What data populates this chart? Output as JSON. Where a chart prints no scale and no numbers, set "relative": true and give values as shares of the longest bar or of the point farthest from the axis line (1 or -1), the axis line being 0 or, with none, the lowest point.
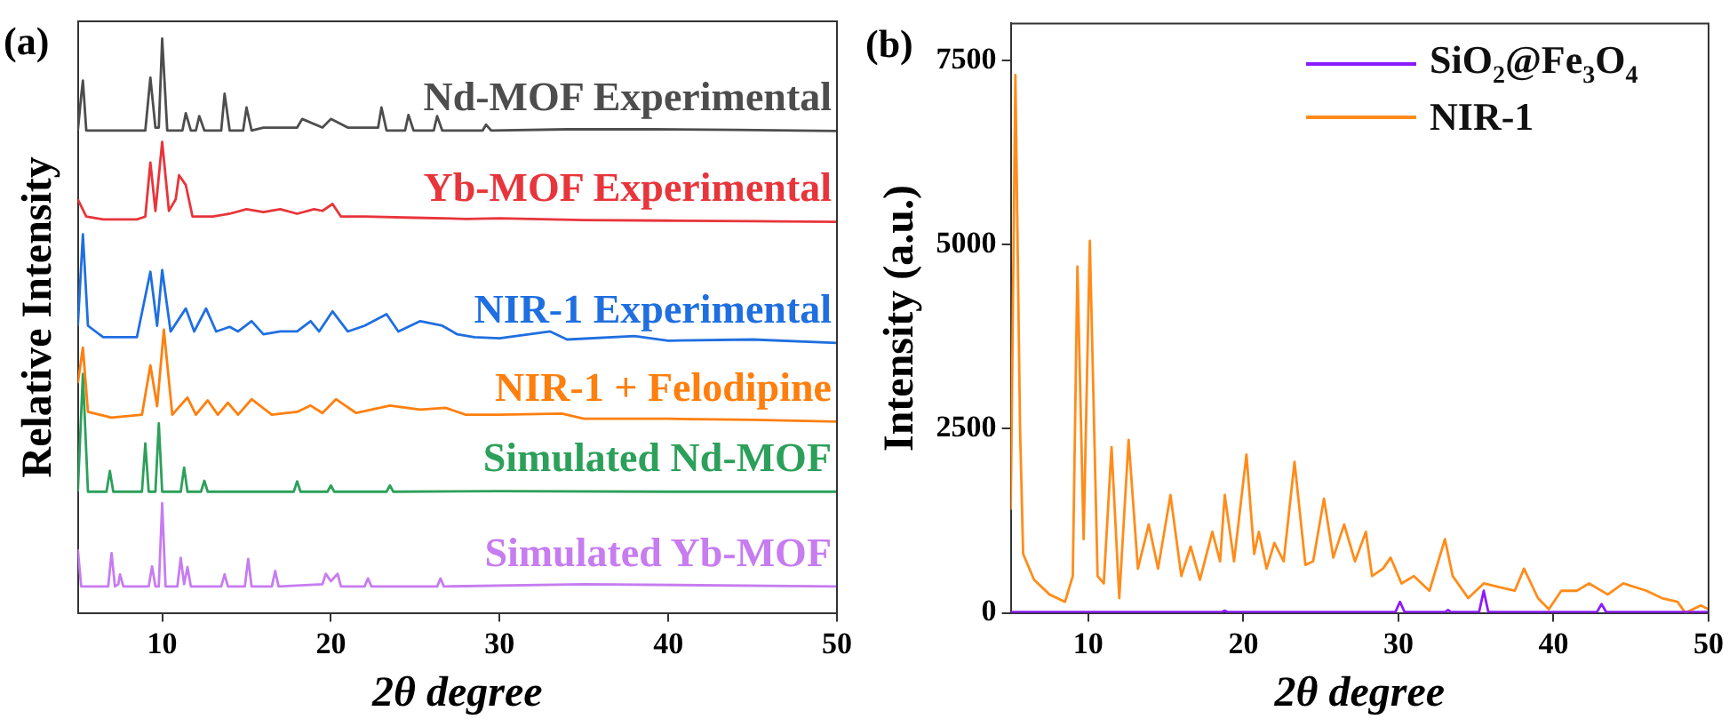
{
  "chart_data": [
    {
      "type": "line",
      "title": "(a)",
      "xlabel": "2θ degree",
      "ylabel": "Relative Intensity",
      "relative": true,
      "xlim": [
        5,
        50
      ],
      "xticks": [
        10,
        20,
        30,
        40,
        50
      ],
      "legend": false,
      "marker": "none",
      "line_style": "solid",
      "series": [
        {
          "name": "Nd-MOF Experimental",
          "color": "#4d4d4d",
          "x": [
            5.0,
            5.2,
            5.3,
            5.5,
            9.0,
            9.3,
            9.6,
            9.8,
            10.0,
            10.3,
            11.2,
            11.4,
            11.7,
            12.0,
            12.2,
            12.5,
            13.5,
            13.7,
            14.0,
            14.8,
            15.0,
            15.3,
            16.0,
            18.0,
            18.3,
            19.5,
            20.0,
            21.0,
            22.8,
            23.0,
            23.3,
            24.4,
            24.6,
            24.9,
            26.1,
            26.3,
            26.6,
            29.0,
            29.2,
            29.5,
            34.0,
            39.0,
            44.0,
            50.0
          ],
          "values": [
            0.84,
            0.9,
            0.927,
            0.84,
            0.84,
            0.932,
            0.845,
            0.845,
            1.0,
            0.84,
            0.84,
            0.87,
            0.84,
            0.84,
            0.865,
            0.84,
            0.84,
            0.904,
            0.84,
            0.84,
            0.88,
            0.84,
            0.845,
            0.845,
            0.86,
            0.845,
            0.86,
            0.845,
            0.845,
            0.88,
            0.84,
            0.84,
            0.867,
            0.84,
            0.84,
            0.865,
            0.84,
            0.84,
            0.85,
            0.84,
            0.842,
            0.842,
            0.841,
            0.839
          ]
        },
        {
          "name": "Yb-MOF Experimental",
          "color": "#e8353b",
          "x": [
            5.0,
            5.5,
            6.5,
            8.5,
            9.0,
            9.3,
            9.6,
            10.0,
            10.4,
            10.8,
            11.0,
            11.4,
            11.8,
            13.0,
            14.0,
            15.0,
            16.0,
            17.0,
            18.0,
            19.0,
            19.5,
            20.1,
            20.6,
            22.0,
            25.0,
            28.0,
            30.0,
            35.0,
            40.0,
            45.0,
            50.0
          ],
          "values": [
            0.72,
            0.69,
            0.685,
            0.685,
            0.69,
            0.784,
            0.7,
            0.82,
            0.7,
            0.72,
            0.762,
            0.745,
            0.69,
            0.69,
            0.695,
            0.703,
            0.698,
            0.703,
            0.695,
            0.703,
            0.7,
            0.712,
            0.69,
            0.69,
            0.688,
            0.686,
            0.687,
            0.684,
            0.683,
            0.682,
            0.681
          ]
        },
        {
          "name": "NIR-1 Experimental",
          "color": "#1f6fe0",
          "x": [
            5.0,
            5.3,
            5.6,
            6.5,
            8.5,
            9.3,
            9.7,
            10.0,
            10.5,
            11.4,
            11.9,
            12.6,
            13.2,
            14.0,
            14.5,
            15.3,
            16.0,
            17.0,
            18.0,
            18.8,
            19.3,
            20.1,
            21.0,
            22.0,
            23.3,
            24.0,
            25.3,
            26.6,
            27.5,
            28.5,
            30.0,
            33.0,
            34.0,
            38.0,
            40.0,
            45.0,
            50.0
          ],
          "values": [
            0.5,
            0.659,
            0.5,
            0.48,
            0.48,
            0.594,
            0.5,
            0.597,
            0.49,
            0.53,
            0.49,
            0.53,
            0.49,
            0.498,
            0.49,
            0.508,
            0.485,
            0.49,
            0.49,
            0.508,
            0.49,
            0.525,
            0.49,
            0.5,
            0.52,
            0.49,
            0.508,
            0.5,
            0.485,
            0.48,
            0.478,
            0.49,
            0.476,
            0.482,
            0.474,
            0.476,
            0.47
          ]
        },
        {
          "name": "NIR-1 + Felodipine",
          "color": "#ff7f0e",
          "x": [
            5.0,
            5.3,
            5.6,
            7.0,
            8.8,
            9.3,
            9.7,
            10.1,
            10.6,
            11.5,
            12.0,
            12.7,
            13.3,
            13.9,
            14.5,
            15.3,
            16.5,
            18.0,
            18.8,
            19.5,
            20.3,
            21.5,
            23.5,
            25.3,
            26.8,
            28.0,
            30.0,
            33.7,
            35.0,
            40.0,
            45.0,
            50.0
          ],
          "values": [
            0.4,
            0.462,
            0.35,
            0.34,
            0.345,
            0.431,
            0.36,
            0.493,
            0.345,
            0.375,
            0.345,
            0.37,
            0.345,
            0.366,
            0.345,
            0.372,
            0.345,
            0.35,
            0.361,
            0.348,
            0.372,
            0.348,
            0.361,
            0.354,
            0.357,
            0.345,
            0.345,
            0.347,
            0.338,
            0.338,
            0.336,
            0.333
          ]
        },
        {
          "name": "Simulated Nd-MOF",
          "color": "#2ca05a",
          "x": [
            5.0,
            5.3,
            5.6,
            6.7,
            6.9,
            7.1,
            8.8,
            9.0,
            9.2,
            9.6,
            9.8,
            10.0,
            11.1,
            11.3,
            11.5,
            12.3,
            12.5,
            12.7,
            17.8,
            18.0,
            18.2,
            19.8,
            20.0,
            20.2,
            23.3,
            23.5,
            23.7,
            30.0,
            40.0,
            50.0
          ],
          "values": [
            0.211,
            0.416,
            0.211,
            0.211,
            0.247,
            0.211,
            0.211,
            0.295,
            0.211,
            0.211,
            0.33,
            0.211,
            0.211,
            0.253,
            0.211,
            0.211,
            0.23,
            0.211,
            0.211,
            0.229,
            0.211,
            0.211,
            0.222,
            0.211,
            0.211,
            0.222,
            0.211,
            0.212,
            0.211,
            0.211
          ]
        },
        {
          "name": "Simulated Yb-MOF",
          "color": "#c77cf0",
          "x": [
            5.0,
            5.2,
            6.8,
            7.0,
            7.2,
            7.4,
            7.5,
            7.7,
            9.2,
            9.4,
            9.6,
            9.8,
            10.0,
            10.2,
            10.9,
            11.1,
            11.3,
            11.5,
            11.7,
            13.5,
            13.7,
            13.9,
            14.9,
            15.1,
            15.3,
            16.5,
            16.7,
            16.9,
            19.5,
            19.7,
            20.0,
            20.4,
            20.6,
            22.0,
            22.2,
            22.4,
            26.3,
            26.5,
            26.7,
            35.0,
            50.0
          ],
          "values": [
            0.111,
            0.046,
            0.046,
            0.104,
            0.046,
            0.05,
            0.067,
            0.046,
            0.046,
            0.081,
            0.046,
            0.046,
            0.191,
            0.046,
            0.046,
            0.096,
            0.05,
            0.08,
            0.046,
            0.046,
            0.067,
            0.046,
            0.046,
            0.094,
            0.046,
            0.046,
            0.073,
            0.046,
            0.05,
            0.068,
            0.055,
            0.068,
            0.046,
            0.046,
            0.06,
            0.046,
            0.046,
            0.06,
            0.046,
            0.05,
            0.046
          ]
        }
      ]
    },
    {
      "type": "line",
      "title": "(b)",
      "xlabel": "2θ degree",
      "ylabel": "Intensity (a.u.)",
      "xlim": [
        5,
        50
      ],
      "xticks": [
        10,
        20,
        30,
        40,
        50
      ],
      "ylim": [
        0,
        8000
      ],
      "yticks": [
        0,
        2500,
        5000,
        7500
      ],
      "legend": "top right",
      "marker": "none",
      "line_style": "solid",
      "series": [
        {
          "name": "SiO$_{2}$@Fe$_{3}$O$_{4}$",
          "color": "#8c1aff",
          "x": [
            5,
            18.6,
            18.8,
            19.0,
            29.8,
            30.1,
            30.4,
            33.0,
            33.2,
            33.4,
            35.2,
            35.5,
            35.8,
            42.8,
            43.1,
            43.4,
            50
          ],
          "values": [
            10,
            10,
            30,
            10,
            10,
            150,
            10,
            10,
            40,
            10,
            10,
            300,
            10,
            10,
            120,
            10,
            10
          ]
        },
        {
          "name": "NIR-1",
          "color": "#ff8c1a",
          "x": [
            5.0,
            5.3,
            5.6,
            5.8,
            6.5,
            7.5,
            8.5,
            9.0,
            9.3,
            9.7,
            10.1,
            10.6,
            11.0,
            11.5,
            12.0,
            12.6,
            13.2,
            13.9,
            14.5,
            15.3,
            16.0,
            16.6,
            17.2,
            18.0,
            18.5,
            18.8,
            19.4,
            20.2,
            20.7,
            21.0,
            21.5,
            22.0,
            22.6,
            23.3,
            24.0,
            24.5,
            25.2,
            25.8,
            26.5,
            27.2,
            27.9,
            28.3,
            29.0,
            29.5,
            30.2,
            31.0,
            32.0,
            33.0,
            33.5,
            34.5,
            35.5,
            36.5,
            37.5,
            38.1,
            39.0,
            39.7,
            40.5,
            41.5,
            42.3,
            43.5,
            44.5,
            46.0,
            47.0,
            48.0,
            48.5,
            49.5,
            50.0
          ],
          "values": [
            1400,
            7300,
            2500,
            800,
            450,
            250,
            150,
            500,
            4700,
            1000,
            5050,
            500,
            400,
            2250,
            200,
            2350,
            600,
            1200,
            600,
            1600,
            500,
            900,
            450,
            1100,
            700,
            1600,
            700,
            2150,
            800,
            1100,
            600,
            950,
            700,
            2050,
            650,
            700,
            1550,
            750,
            1200,
            700,
            1100,
            500,
            600,
            750,
            400,
            500,
            300,
            1000,
            500,
            200,
            400,
            350,
            300,
            600,
            200,
            50,
            300,
            300,
            400,
            250,
            400,
            300,
            200,
            150,
            0,
            100,
            50
          ]
        }
      ]
    }
  ]
}
